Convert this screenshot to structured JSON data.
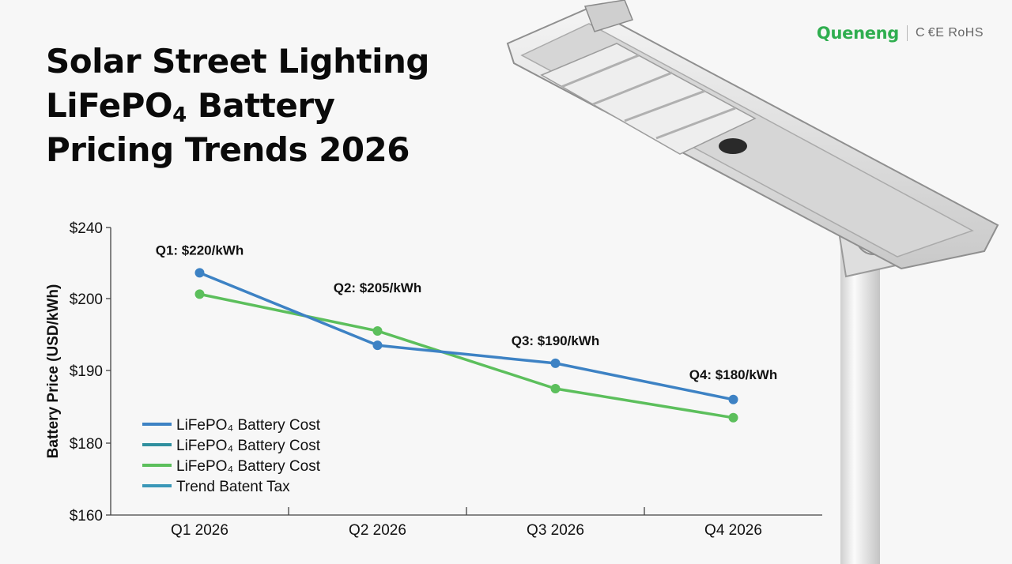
{
  "brand": {
    "logo": "Queneng",
    "certs": "C €E RoHS"
  },
  "title_lines": [
    "Solar Street Lighting",
    "LiFePO|4| Battery",
    "Pricing Trends 2026"
  ],
  "colors": {
    "blue": "#3d82c4",
    "teal": "#2f8f9e",
    "green": "#5cbf5c",
    "trend": "#3a97b8"
  },
  "chart_data": {
    "type": "line",
    "title": "Solar Street Lighting LiFePO4 Battery Pricing Trends 2026",
    "xlabel": "",
    "ylabel": "Battery Price (USD/kWh)",
    "categories": [
      "Q1 2026",
      "Q2 2026",
      "Q3 2026",
      "Q4 2026"
    ],
    "y_ticks": [
      160,
      180,
      190,
      200,
      240
    ],
    "y_tick_labels": [
      "$160",
      "$180",
      "$190",
      "$200",
      "$240"
    ],
    "y_axis": "piecewise (non-linear) as drawn",
    "series": [
      {
        "name": "LiFePO₄ Battery Cost",
        "color": "#3d82c4",
        "values": [
          214.5,
          193.5,
          191.0,
          186.0
        ]
      },
      {
        "name": "LiFePO₄ Battery Cost",
        "color": "#5cbf5c",
        "values": [
          202.5,
          195.5,
          187.5,
          183.5
        ]
      }
    ],
    "annotations": [
      "Q1: $220/kWh",
      "Q2: $205/kWh",
      "Q3: $190/kWh",
      "Q4: $180/kWh"
    ],
    "legend_position": "bottom-left",
    "legend": [
      {
        "label": "LiFePO₄ Battery Cost",
        "color": "#3d82c4"
      },
      {
        "label": "LiFePO₄ Battery Cost",
        "color": "#2f8f9e"
      },
      {
        "label": "LiFePO₄ Battery Cost",
        "color": "#5cbf5c"
      },
      {
        "label": "Trend Batent Tax",
        "color": "#3a97b8"
      }
    ]
  }
}
